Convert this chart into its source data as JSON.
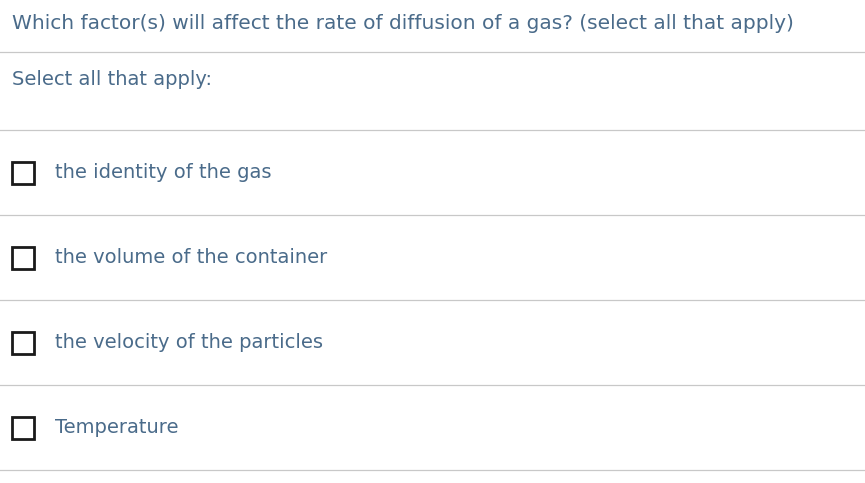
{
  "title": "Which factor(s) will affect the rate of diffusion of a gas? (select all that apply)",
  "subtitle": "Select all that apply:",
  "options": [
    "the identity of the gas",
    "the volume of the container",
    "the velocity of the particles",
    "Temperature"
  ],
  "title_color": "#4a6b8a",
  "subtitle_color": "#4a6b8a",
  "option_color": "#4a6b8a",
  "bg_color": "#ffffff",
  "line_color": "#c8c8c8",
  "checkbox_edge_color": "#1a1a1a",
  "title_fontsize": 14.5,
  "subtitle_fontsize": 14.0,
  "option_fontsize": 14.0,
  "fig_width": 8.65,
  "fig_height": 4.83,
  "dpi": 100
}
